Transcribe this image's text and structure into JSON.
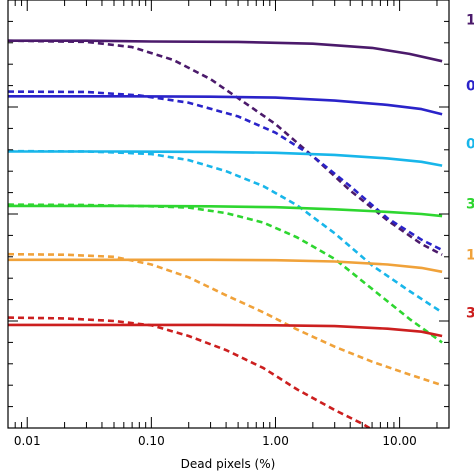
{
  "chart_data": {
    "type": "line",
    "xlabel": "Dead pixels (%)",
    "ylabel": "",
    "xscale": "log",
    "xlim": [
      0.007,
      25
    ],
    "ylim": [
      0,
      1
    ],
    "xticks": [
      {
        "value": 0.01,
        "label": "0.01"
      },
      {
        "value": 0.1,
        "label": "0.10"
      },
      {
        "value": 1,
        "label": "1.00"
      },
      {
        "value": 10,
        "label": "10.00"
      }
    ],
    "right_labels": [
      {
        "text": "1",
        "color": "#4b1a6b",
        "y": 0.955
      },
      {
        "text": "0",
        "color": "#2a23c9",
        "y": 0.8
      },
      {
        "text": "0",
        "color": "#18b6ea",
        "y": 0.665
      },
      {
        "text": "3",
        "color": "#2ed630",
        "y": 0.525
      },
      {
        "text": "1",
        "color": "#f0a23a",
        "y": 0.405
      },
      {
        "text": "3",
        "color": "#cc1f1f",
        "y": 0.27
      }
    ],
    "series": [
      {
        "color": "#4b1a6b",
        "style": "solid",
        "x": [
          0.007,
          0.03,
          0.1,
          0.5,
          2,
          6,
          12,
          22
        ],
        "y": [
          0.905,
          0.905,
          0.903,
          0.902,
          0.898,
          0.888,
          0.874,
          0.857
        ]
      },
      {
        "color": "#4b1a6b",
        "style": "dashed",
        "x": [
          0.007,
          0.03,
          0.07,
          0.15,
          0.3,
          0.6,
          1.0,
          2.0,
          4.0,
          8.0,
          15,
          22
        ],
        "y": [
          0.905,
          0.902,
          0.89,
          0.86,
          0.815,
          0.755,
          0.71,
          0.635,
          0.555,
          0.485,
          0.43,
          0.405
        ]
      },
      {
        "color": "#2a23c9",
        "style": "solid",
        "x": [
          0.007,
          0.05,
          0.3,
          1.0,
          3.0,
          8.0,
          15,
          22
        ],
        "y": [
          0.775,
          0.775,
          0.774,
          0.772,
          0.765,
          0.755,
          0.745,
          0.733
        ]
      },
      {
        "color": "#2a23c9",
        "style": "dashed",
        "x": [
          0.007,
          0.03,
          0.08,
          0.2,
          0.5,
          1.0,
          2.0,
          4.0,
          8.0,
          15,
          22
        ],
        "y": [
          0.786,
          0.785,
          0.777,
          0.76,
          0.728,
          0.69,
          0.635,
          0.565,
          0.49,
          0.44,
          0.416
        ]
      },
      {
        "color": "#18b6ea",
        "style": "solid",
        "x": [
          0.007,
          0.05,
          0.3,
          1.0,
          3.0,
          8.0,
          15,
          22
        ],
        "y": [
          0.646,
          0.646,
          0.645,
          0.643,
          0.638,
          0.63,
          0.622,
          0.613
        ]
      },
      {
        "color": "#18b6ea",
        "style": "dashed",
        "x": [
          0.007,
          0.03,
          0.06,
          0.1,
          0.2,
          0.4,
          0.8,
          1.5,
          3.0,
          6.0,
          12,
          22
        ],
        "y": [
          0.647,
          0.646,
          0.643,
          0.64,
          0.626,
          0.6,
          0.565,
          0.52,
          0.455,
          0.38,
          0.32,
          0.27
        ]
      },
      {
        "color": "#2ed630",
        "style": "solid",
        "x": [
          0.007,
          0.05,
          0.3,
          1.0,
          3.0,
          8.0,
          15,
          22
        ],
        "y": [
          0.519,
          0.519,
          0.518,
          0.516,
          0.511,
          0.505,
          0.5,
          0.495
        ]
      },
      {
        "color": "#2ed630",
        "style": "dashed",
        "x": [
          0.007,
          0.03,
          0.1,
          0.2,
          0.4,
          0.8,
          1.5,
          3.0,
          6.0,
          12,
          22
        ],
        "y": [
          0.522,
          0.521,
          0.518,
          0.515,
          0.502,
          0.48,
          0.445,
          0.395,
          0.325,
          0.255,
          0.2
        ]
      },
      {
        "color": "#f0a23a",
        "style": "solid",
        "x": [
          0.007,
          0.05,
          0.3,
          1.0,
          3.0,
          8.0,
          15,
          22
        ],
        "y": [
          0.393,
          0.393,
          0.393,
          0.392,
          0.389,
          0.382,
          0.374,
          0.365
        ]
      },
      {
        "color": "#f0a23a",
        "style": "dashed",
        "x": [
          0.007,
          0.02,
          0.05,
          0.1,
          0.2,
          0.4,
          0.8,
          1.5,
          3.0,
          6.0,
          12,
          22
        ],
        "y": [
          0.406,
          0.405,
          0.4,
          0.382,
          0.352,
          0.31,
          0.27,
          0.23,
          0.19,
          0.155,
          0.125,
          0.1
        ]
      },
      {
        "color": "#cc1f1f",
        "style": "solid",
        "x": [
          0.007,
          0.05,
          0.3,
          1.0,
          3.0,
          8.0,
          15,
          22
        ],
        "y": [
          0.241,
          0.241,
          0.241,
          0.24,
          0.238,
          0.232,
          0.225,
          0.215
        ]
      },
      {
        "color": "#cc1f1f",
        "style": "dashed",
        "x": [
          0.007,
          0.02,
          0.05,
          0.1,
          0.2,
          0.4,
          0.8,
          1.5,
          3.0,
          5.0,
          8.0
        ],
        "y": [
          0.258,
          0.256,
          0.25,
          0.24,
          0.215,
          0.182,
          0.14,
          0.09,
          0.042,
          0.01,
          -0.025
        ]
      }
    ]
  }
}
